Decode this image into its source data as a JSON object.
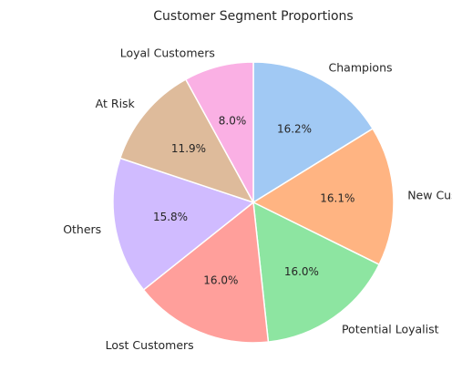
{
  "chart_data": {
    "type": "pie",
    "title": "Customer Segment Proportions",
    "start_angle_deg": 90,
    "direction": "clockwise",
    "slices": [
      {
        "label": "Champions",
        "value": 16.2,
        "pct_text": "16.2%",
        "color": "#a1c9f4"
      },
      {
        "label": "New Customers",
        "value": 16.1,
        "pct_text": "16.1%",
        "color": "#ffb482"
      },
      {
        "label": "Potential Loyalist",
        "value": 16.0,
        "pct_text": "16.0%",
        "color": "#8de5a1"
      },
      {
        "label": "Lost Customers",
        "value": 16.0,
        "pct_text": "16.0%",
        "color": "#ff9f9b"
      },
      {
        "label": "Others",
        "value": 15.8,
        "pct_text": "15.8%",
        "color": "#d0bbff"
      },
      {
        "label": "At Risk",
        "value": 11.9,
        "pct_text": "11.9%",
        "color": "#debb9b"
      },
      {
        "label": "Loyal Customers",
        "value": 8.0,
        "pct_text": "8.0%",
        "color": "#fab0e4"
      }
    ]
  }
}
